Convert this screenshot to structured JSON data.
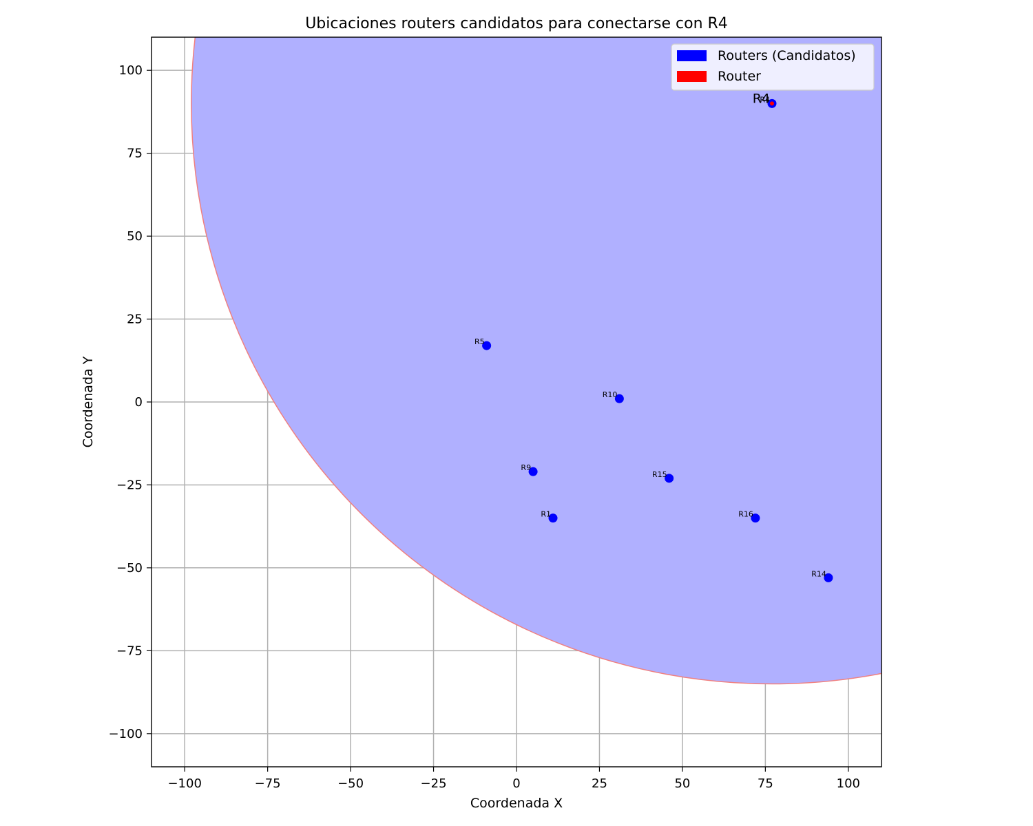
{
  "chart_data": {
    "type": "scatter",
    "title": "Ubicaciones routers candidatos para conectarse con R4",
    "xlabel": "Coordenada X",
    "ylabel": "Coordenada Y",
    "xlim": [
      -110,
      110
    ],
    "ylim": [
      -110,
      110
    ],
    "xticks": [
      -100,
      -75,
      -50,
      -25,
      0,
      25,
      50,
      75,
      100
    ],
    "yticks": [
      -100,
      -75,
      -50,
      -25,
      0,
      25,
      50,
      75,
      100
    ],
    "xtick_labels": [
      "−100",
      "−75",
      "−50",
      "−25",
      "0",
      "25",
      "50",
      "75",
      "100"
    ],
    "ytick_labels": [
      "−100",
      "−75",
      "−50",
      "−25",
      "0",
      "25",
      "50",
      "75",
      "100"
    ],
    "grid": true,
    "legend_position": "upper-right",
    "legend": [
      {
        "label": "Routers (Candidatos)",
        "color": "#0000ff"
      },
      {
        "label": "Router",
        "color": "#ff0000"
      }
    ],
    "range_circle": {
      "center": [
        77,
        90
      ],
      "radius": 175,
      "fill_color": "#b0b0ff",
      "edge_color": "#f08080"
    },
    "target": {
      "name": "R4",
      "x": 77,
      "y": 90,
      "color": "#ff0000"
    },
    "series": [
      {
        "name": "Routers (Candidatos)",
        "color": "#0000ff",
        "points": [
          {
            "label": "R5",
            "x": -9,
            "y": 17
          },
          {
            "label": "R10",
            "x": 31,
            "y": 1
          },
          {
            "label": "R9",
            "x": 5,
            "y": -21
          },
          {
            "label": "R15",
            "x": 46,
            "y": -23
          },
          {
            "label": "R1",
            "x": 11,
            "y": -35
          },
          {
            "label": "R16",
            "x": 72,
            "y": -35
          },
          {
            "label": "R14",
            "x": 94,
            "y": -53
          },
          {
            "label": "R4",
            "x": 77,
            "y": 90
          }
        ]
      }
    ]
  }
}
